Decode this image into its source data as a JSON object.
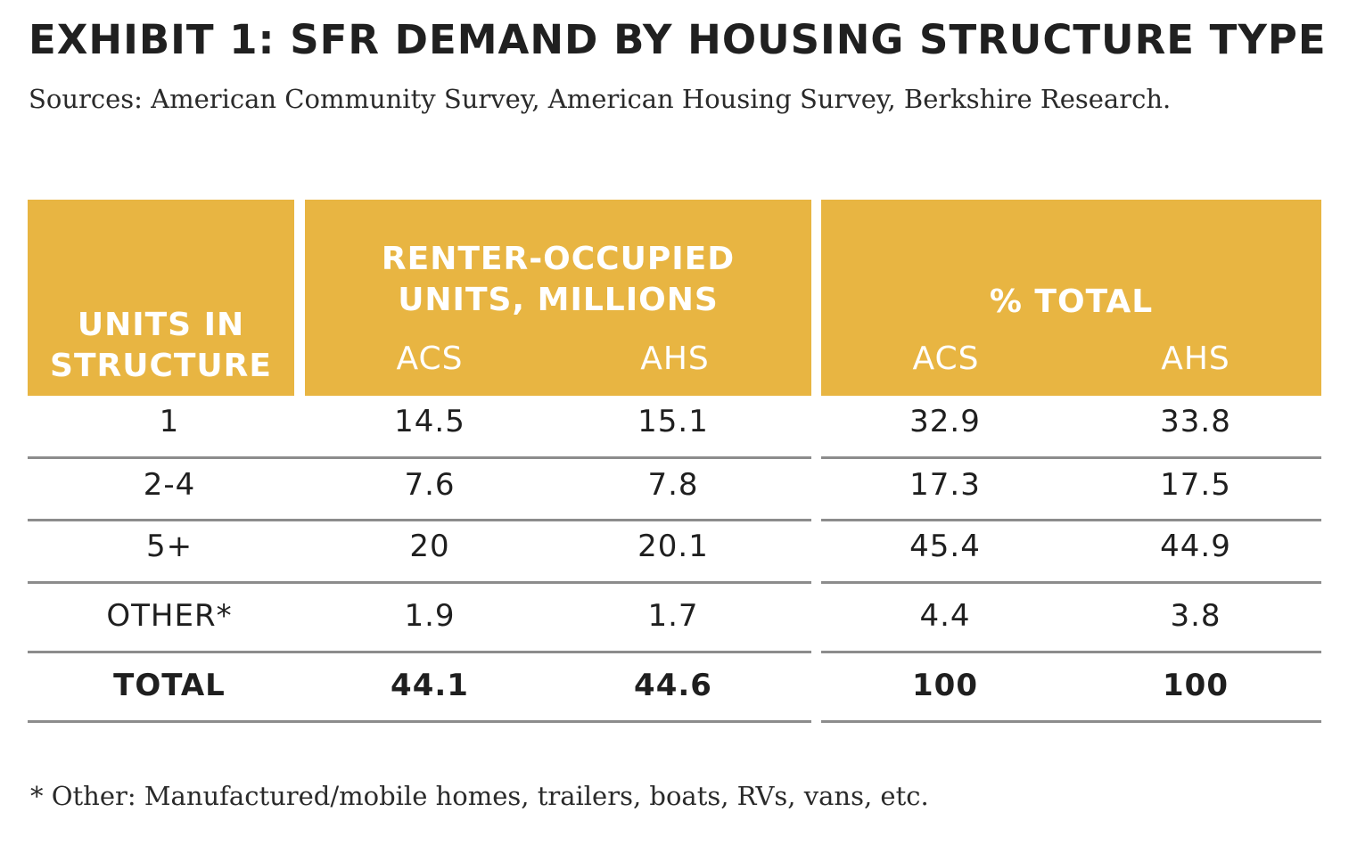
{
  "title": "EXHIBIT 1: SFR DEMAND BY HOUSING STRUCTURE TYPE",
  "sources": "Sources: American Community Survey, American Housing Survey, Berkshire Research.",
  "footnote": "* Other: Manufactured/mobile homes, trailers, boats, RVs, vans, etc.",
  "header": {
    "units_line1": "UNITS IN",
    "units_line2": "STRUCTURE",
    "renter_line1": "RENTER-OCCUPIED",
    "renter_line2": "UNITS, MILLIONS",
    "pct_title": "% TOTAL",
    "acs": "ACS",
    "ahs": "AHS"
  },
  "rows": [
    {
      "units": "1",
      "renter_acs": "14.5",
      "renter_ahs": "15.1",
      "pct_acs": "32.9",
      "pct_ahs": "33.8"
    },
    {
      "units": "2-4",
      "renter_acs": "7.6",
      "renter_ahs": "7.8",
      "pct_acs": "17.3",
      "pct_ahs": "17.5"
    },
    {
      "units": "5+",
      "renter_acs": "20",
      "renter_ahs": "20.1",
      "pct_acs": "45.4",
      "pct_ahs": "44.9"
    },
    {
      "units": "OTHER*",
      "renter_acs": "1.9",
      "renter_ahs": "1.7",
      "pct_acs": "4.4",
      "pct_ahs": "3.8"
    },
    {
      "units": "TOTAL",
      "renter_acs": "44.1",
      "renter_ahs": "44.6",
      "pct_acs": "100",
      "pct_ahs": "100"
    }
  ],
  "colors": {
    "header_fill": "#e8b542",
    "header_text": "#ffffff",
    "rule": "#8c8c8c"
  }
}
